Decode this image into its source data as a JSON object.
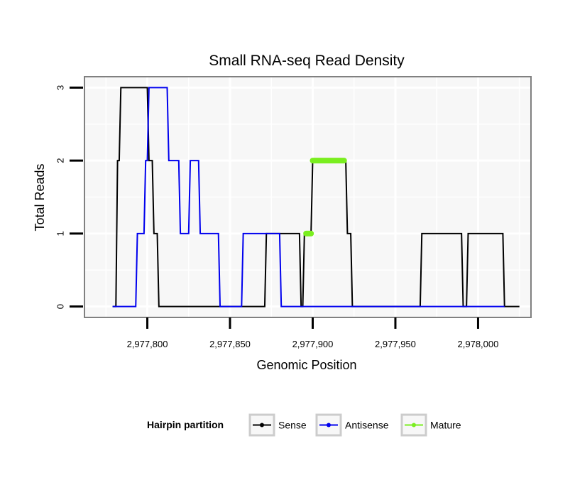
{
  "chart_data": {
    "type": "line",
    "title": "Small RNA-seq Read Density",
    "xlabel": "Genomic Position",
    "ylabel": "Total Reads",
    "xlim": [
      2977762,
      2978032
    ],
    "ylim": [
      -0.15,
      3.15
    ],
    "x_ticks": [
      2977800,
      2977850,
      2977900,
      2977950,
      2978000
    ],
    "x_tick_labels": [
      "2,977,800",
      "2,977,850",
      "2,977,900",
      "2,977,950",
      "2,978,000"
    ],
    "y_ticks": [
      0,
      1,
      2,
      3
    ],
    "y_tick_labels": [
      "0",
      "1",
      "2",
      "3"
    ],
    "grid": true,
    "legend": {
      "title": "Hairpin partition",
      "position": "bottom",
      "entries": [
        "Sense",
        "Antisense",
        "Mature"
      ]
    },
    "series": [
      {
        "name": "Sense",
        "color": "#000000",
        "x": [
          2977779,
          2977781,
          2977782,
          2977783,
          2977784,
          2977785,
          2977800,
          2977801,
          2977803,
          2977804,
          2977806,
          2977807,
          2977808,
          2977871,
          2977872,
          2977892,
          2977893,
          2977894,
          2977895,
          2977899,
          2977900,
          2977920,
          2977921,
          2977923,
          2977924,
          2977965,
          2977966,
          2977990,
          2977991,
          2977993,
          2977994,
          2978015,
          2978016,
          2978025
        ],
        "values": [
          0,
          0,
          2,
          2,
          3,
          3,
          3,
          2,
          2,
          1,
          1,
          0,
          0,
          0,
          1,
          1,
          0,
          0,
          1,
          1,
          2,
          2,
          1,
          1,
          0,
          0,
          1,
          1,
          0,
          0,
          1,
          1,
          0,
          0
        ]
      },
      {
        "name": "Antisense",
        "color": "#0000ee",
        "x": [
          2977779,
          2977793,
          2977794,
          2977798,
          2977799,
          2977800,
          2977801,
          2977805,
          2977806,
          2977812,
          2977813,
          2977819,
          2977820,
          2977822,
          2977823,
          2977825,
          2977826,
          2977831,
          2977832,
          2977843,
          2977844,
          2977857,
          2977858,
          2977880,
          2977881,
          2977893,
          2977894,
          2978016
        ],
        "values": [
          0,
          0,
          1,
          1,
          2,
          2,
          3,
          3,
          3,
          3,
          2,
          2,
          1,
          1,
          1,
          1,
          2,
          2,
          1,
          1,
          0,
          0,
          1,
          1,
          0,
          0,
          0,
          0
        ]
      },
      {
        "name": "Mature",
        "color": "#7aee1f",
        "segments": [
          {
            "x": [
              2977896,
              2977899
            ],
            "values": [
              1,
              1
            ]
          },
          {
            "x": [
              2977900,
              2977919
            ],
            "values": [
              2,
              2
            ]
          }
        ]
      }
    ]
  }
}
